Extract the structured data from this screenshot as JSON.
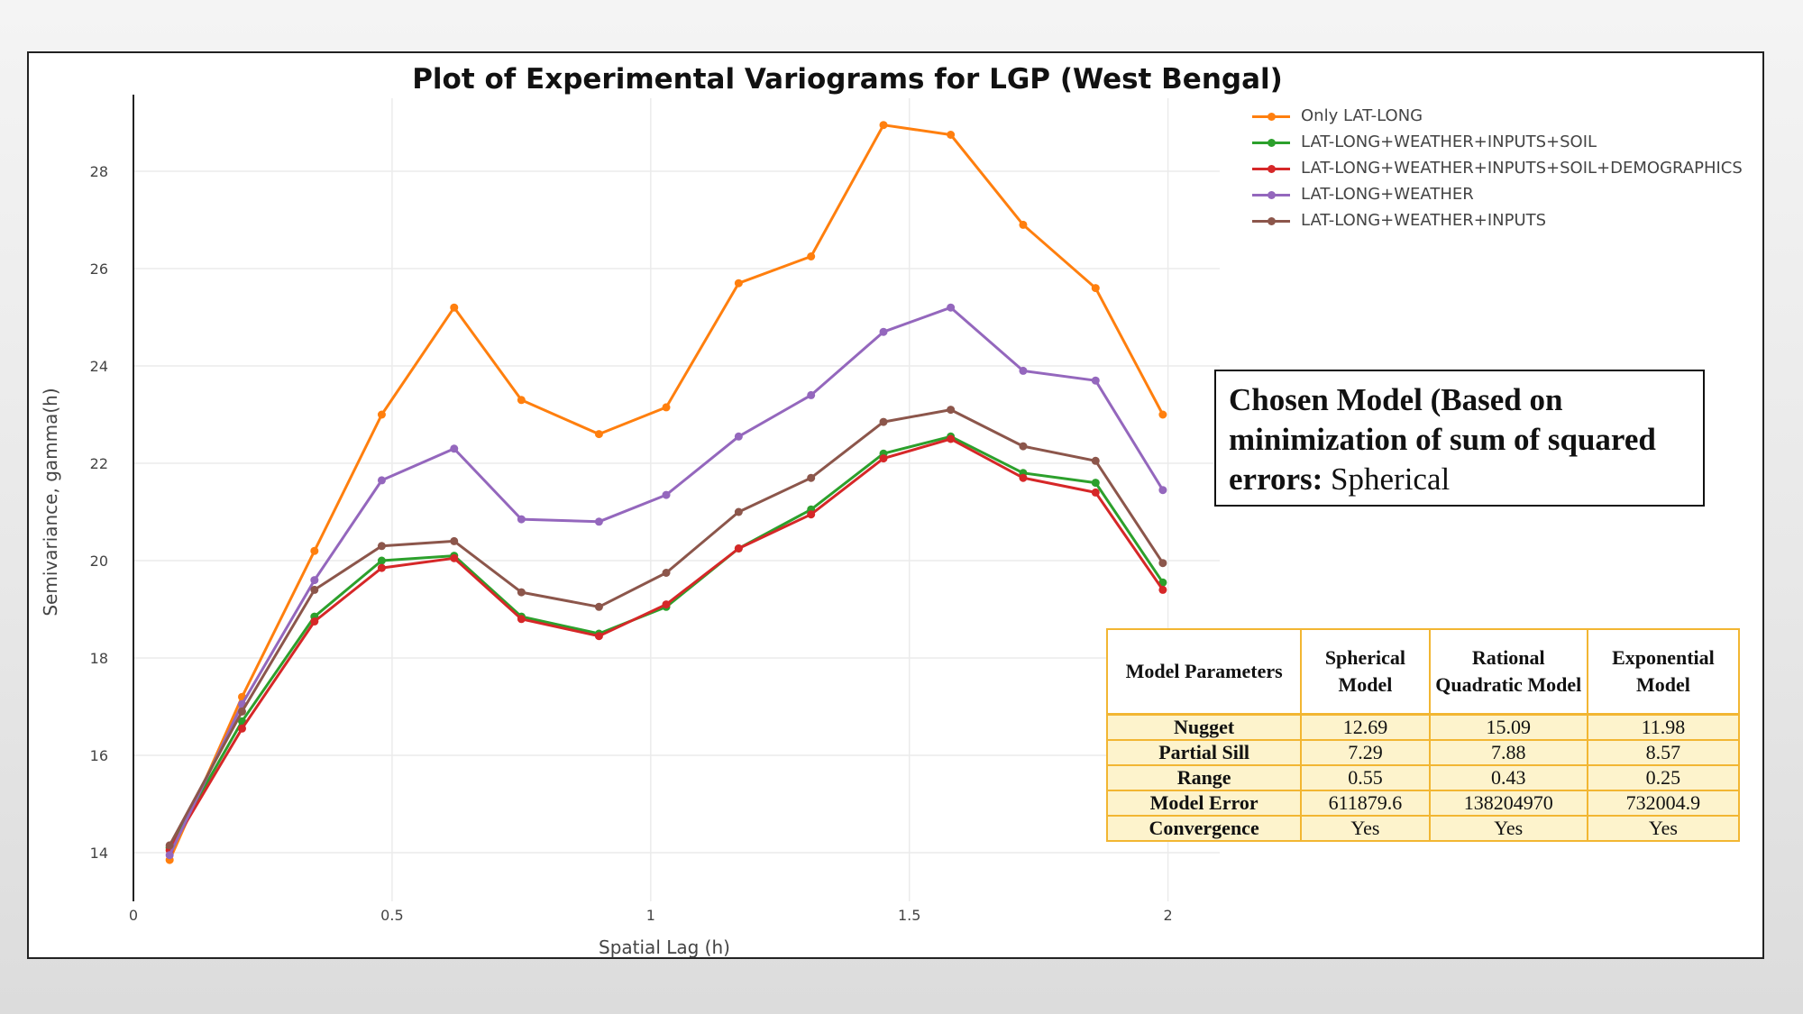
{
  "chart_data": {
    "type": "line",
    "title": "Plot of Experimental Variograms for LGP (West Bengal)",
    "xlabel": "Spatial Lag (h)",
    "ylabel": "Semivariance, gamma(h)",
    "xlim": [
      0,
      2.1
    ],
    "ylim": [
      13,
      29.5
    ],
    "xticks": [
      0,
      0.5,
      1,
      1.5,
      2
    ],
    "xtick_labels": [
      "0",
      "0.5",
      "1",
      "1.5",
      "2"
    ],
    "yticks": [
      14,
      16,
      18,
      20,
      22,
      24,
      26,
      28
    ],
    "ytick_labels": [
      "14",
      "16",
      "18",
      "20",
      "22",
      "24",
      "26",
      "28"
    ],
    "grid": true,
    "legend_position": "top-right",
    "x": [
      0.07,
      0.21,
      0.35,
      0.48,
      0.62,
      0.75,
      0.9,
      1.03,
      1.17,
      1.31,
      1.45,
      1.58,
      1.72,
      1.86,
      1.99
    ],
    "series": [
      {
        "name": "Only LAT-LONG",
        "color": "#ff7f0e",
        "values": [
          13.85,
          17.2,
          20.2,
          23.0,
          25.2,
          23.3,
          22.6,
          23.15,
          25.7,
          26.25,
          28.95,
          28.75,
          26.9,
          25.6,
          23.0
        ]
      },
      {
        "name": "LAT-LONG+WEATHER+INPUTS+SOIL",
        "color": "#2ca02c",
        "values": [
          14.1,
          16.7,
          18.85,
          20.0,
          20.1,
          18.85,
          18.5,
          19.05,
          20.25,
          21.05,
          22.2,
          22.55,
          21.8,
          21.6,
          19.55
        ]
      },
      {
        "name": "LAT-LONG+WEATHER+INPUTS+SOIL+DEMOGRAPHICS",
        "color": "#d62728",
        "values": [
          14.05,
          16.55,
          18.75,
          19.85,
          20.05,
          18.8,
          18.45,
          19.1,
          20.25,
          20.95,
          22.1,
          22.5,
          21.7,
          21.4,
          19.4
        ]
      },
      {
        "name": "LAT-LONG+WEATHER",
        "color": "#9467bd",
        "values": [
          13.95,
          17.05,
          19.6,
          21.65,
          22.3,
          20.85,
          20.8,
          21.35,
          22.55,
          23.4,
          24.7,
          25.2,
          23.9,
          23.7,
          21.45
        ]
      },
      {
        "name": "LAT-LONG+WEATHER+INPUTS",
        "color": "#8c564b",
        "values": [
          14.15,
          16.9,
          19.4,
          20.3,
          20.4,
          19.35,
          19.05,
          19.75,
          21.0,
          21.7,
          22.85,
          23.1,
          22.35,
          22.05,
          19.95
        ]
      }
    ]
  },
  "chosen_model": {
    "label_bold": "Chosen Model (Based on minimization of sum of squared errors:",
    "value": "Spherical"
  },
  "params_table": {
    "headers": [
      "Model Parameters",
      "Spherical Model",
      "Rational Quadratic Model",
      "Exponential Model"
    ],
    "rows": [
      [
        "Nugget",
        "12.69",
        "15.09",
        "11.98"
      ],
      [
        "Partial Sill",
        "7.29",
        "7.88",
        "8.57"
      ],
      [
        "Range",
        "0.55",
        "0.43",
        "0.25"
      ],
      [
        "Model Error",
        "611879.6",
        "138204970",
        "732004.9"
      ],
      [
        "Convergence",
        "Yes",
        "Yes",
        "Yes"
      ]
    ]
  }
}
